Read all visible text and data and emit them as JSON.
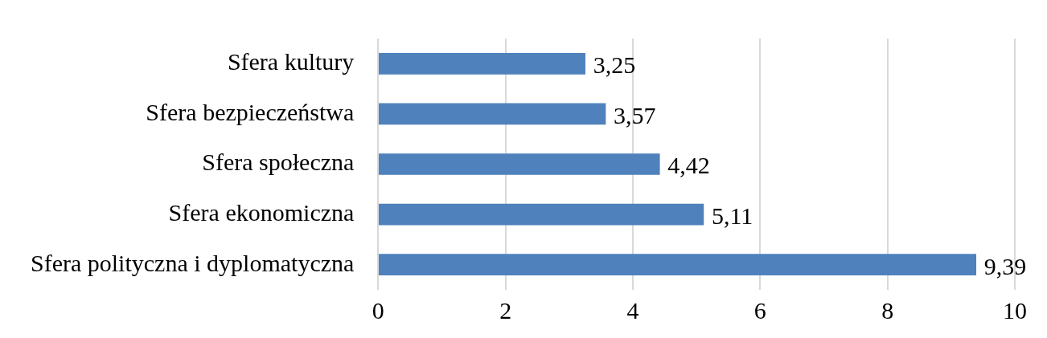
{
  "chart_data": {
    "type": "bar",
    "orientation": "horizontal",
    "categories": [
      "Sfera kultury",
      "Sfera bezpieczeństwa",
      "Sfera społeczna",
      "Sfera ekonomiczna",
      "Sfera polityczna i dyplomatyczna"
    ],
    "values": [
      3.25,
      3.57,
      4.42,
      5.11,
      9.39
    ],
    "value_labels": [
      "3,25",
      "3,57",
      "4,42",
      "5,11",
      "9,39"
    ],
    "color": "#4f81bd",
    "xlim": [
      0,
      10
    ],
    "xticks": [
      0,
      2,
      4,
      6,
      8,
      10
    ],
    "grid": "x",
    "legend": false
  }
}
